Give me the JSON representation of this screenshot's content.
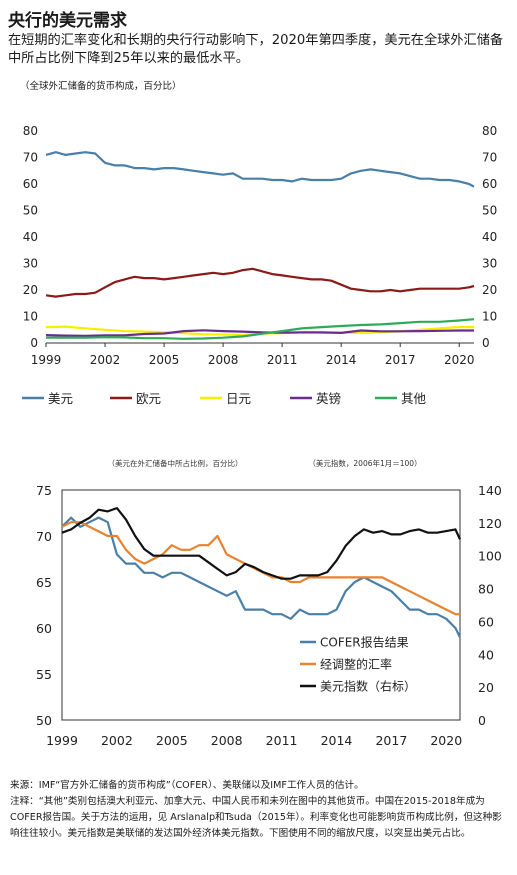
{
  "header": {
    "title": "央行的美元需求",
    "subtitle": "在短期的汇率变化和长期的央行行动影响下，2020年第四季度，美元在全球外汇储备中所占比例下降到25年以来的最低水平。"
  },
  "footer": {
    "source": "来源：IMF“官方外汇储备的货币构成”（COFER）、美联储以及IMF工作人员的估计。",
    "note": "注释：“其他”类别包括澳大利亚元、加拿大元、中国人民币和未列在图中的其他货币。中国在2015-2018年成为COFER报告国。关于方法的运用，见 Arslanalp和Tsuda（2015年）。利率变化也可能影响货币构成比例，但这种影响往往较小。美元指数是美联储的发达国外经济体美元指数。下图使用不同的缩放尺度，以突显出美元占比。"
  },
  "chart_data": [
    {
      "type": "line",
      "unit_label": "（全球外汇储备的货币构成，百分比）",
      "ylim": [
        0,
        80
      ],
      "yticks": [
        "0",
        "10",
        "20",
        "30",
        "40",
        "50",
        "60",
        "70",
        "80"
      ],
      "xlim": [
        1999,
        2020.75
      ],
      "xticks": [
        "1999",
        "2002",
        "2005",
        "2008",
        "2011",
        "2014",
        "2017",
        "2020"
      ],
      "grid": false,
      "legend_position": "bottom",
      "series": [
        {
          "name": "美元",
          "color": "#4a7fa8",
          "x": [
            1999,
            1999.5,
            2000,
            2000.5,
            2001,
            2001.5,
            2002,
            2002.5,
            2003,
            2003.5,
            2004,
            2004.5,
            2005,
            2005.5,
            2006,
            2006.5,
            2007,
            2007.5,
            2008,
            2008.5,
            2009,
            2009.5,
            2010,
            2010.5,
            2011,
            2011.5,
            2012,
            2012.5,
            2013,
            2013.5,
            2014,
            2014.5,
            2015,
            2015.5,
            2016,
            2016.5,
            2017,
            2017.5,
            2018,
            2018.5,
            2019,
            2019.5,
            2020,
            2020.5,
            2020.75
          ],
          "values": [
            71,
            72,
            71,
            71.5,
            72,
            71.5,
            68,
            67,
            67,
            66,
            66,
            65.5,
            66,
            66,
            65.5,
            65,
            64.5,
            64,
            63.5,
            64,
            62,
            62,
            62,
            61.5,
            61.5,
            61,
            62,
            61.5,
            61.5,
            61.5,
            62,
            64,
            65,
            65.5,
            65,
            64.5,
            64,
            63,
            62,
            62,
            61.5,
            61.5,
            61,
            60,
            59
          ]
        },
        {
          "name": "欧元",
          "color": "#8b1a1a",
          "x": [
            1999,
            1999.5,
            2000,
            2000.5,
            2001,
            2001.5,
            2002,
            2002.5,
            2003,
            2003.5,
            2004,
            2004.5,
            2005,
            2005.5,
            2006,
            2006.5,
            2007,
            2007.5,
            2008,
            2008.5,
            2009,
            2009.5,
            2010,
            2010.5,
            2011,
            2011.5,
            2012,
            2012.5,
            2013,
            2013.5,
            2014,
            2014.5,
            2015,
            2015.5,
            2016,
            2016.5,
            2017,
            2017.5,
            2018,
            2018.5,
            2019,
            2019.5,
            2020,
            2020.5,
            2020.75
          ],
          "values": [
            18,
            17.5,
            18,
            18.5,
            18.5,
            19,
            21,
            23,
            24,
            25,
            24.5,
            24.5,
            24,
            24.5,
            25,
            25.5,
            26,
            26.5,
            26,
            26.5,
            27.5,
            28,
            27,
            26,
            25.5,
            25,
            24.5,
            24,
            24,
            23.5,
            22,
            20.5,
            20,
            19.5,
            19.5,
            20,
            19.5,
            20,
            20.5,
            20.5,
            20.5,
            20.5,
            20.5,
            21,
            21.5
          ]
        },
        {
          "name": "日元",
          "color": "#f5f000",
          "x": [
            1999,
            2000,
            2001,
            2002,
            2003,
            2004,
            2005,
            2006,
            2007,
            2008,
            2009,
            2010,
            2011,
            2012,
            2013,
            2014,
            2015,
            2016,
            2017,
            2018,
            2019,
            2020,
            2020.75
          ],
          "values": [
            6,
            6.2,
            5.5,
            5,
            4.5,
            4.3,
            4,
            3.7,
            3.3,
            3.2,
            3,
            3.6,
            3.7,
            4,
            3.9,
            3.9,
            3.8,
            4,
            4.5,
            5,
            5.5,
            6,
            6
          ]
        },
        {
          "name": "英镑",
          "color": "#6a2d8f",
          "x": [
            1999,
            2000,
            2001,
            2002,
            2003,
            2004,
            2005,
            2006,
            2007,
            2008,
            2009,
            2010,
            2011,
            2012,
            2013,
            2014,
            2015,
            2016,
            2017,
            2018,
            2019,
            2020,
            2020.75
          ],
          "values": [
            3,
            2.8,
            2.7,
            2.9,
            2.9,
            3.4,
            3.6,
            4.5,
            4.8,
            4.5,
            4.3,
            4,
            3.9,
            4,
            4,
            3.8,
            4.7,
            4.4,
            4.4,
            4.5,
            4.6,
            4.7,
            4.7
          ]
        },
        {
          "name": "其他",
          "color": "#2eaa5a",
          "x": [
            1999,
            2000,
            2001,
            2002,
            2003,
            2004,
            2005,
            2006,
            2007,
            2008,
            2009,
            2010,
            2011,
            2012,
            2013,
            2014,
            2015,
            2016,
            2017,
            2018,
            2019,
            2020,
            2020.75
          ],
          "values": [
            2,
            2,
            2,
            2.2,
            2.1,
            1.8,
            1.8,
            1.6,
            1.7,
            2,
            2.5,
            3.5,
            4.5,
            5.5,
            6,
            6.4,
            6.8,
            7,
            7.5,
            8,
            8,
            8.5,
            9
          ]
        }
      ]
    },
    {
      "type": "line",
      "left_axis_label": "（美元在外汇储备中所占比例，百分比）",
      "right_axis_label": "（美元指数，2006年1月＝100）",
      "ylim_left": [
        50,
        75
      ],
      "yticks_left": [
        "50",
        "55",
        "60",
        "65",
        "70",
        "75"
      ],
      "ylim_right": [
        0,
        140
      ],
      "yticks_right": [
        "0",
        "20",
        "40",
        "60",
        "80",
        "100",
        "120",
        "140"
      ],
      "xlim": [
        1999,
        2020.75
      ],
      "xticks": [
        "1999",
        "2002",
        "2005",
        "2008",
        "2011",
        "2014",
        "2017",
        "2020"
      ],
      "grid": false,
      "legend_position": "bottom-right",
      "series": [
        {
          "name": "COFER报告结果",
          "color": "#4a7fa8",
          "axis": "left",
          "x": [
            1999,
            1999.5,
            2000,
            2000.5,
            2001,
            2001.5,
            2002,
            2002.5,
            2003,
            2003.5,
            2004,
            2004.5,
            2005,
            2005.5,
            2006,
            2006.5,
            2007,
            2007.5,
            2008,
            2008.5,
            2009,
            2009.5,
            2010,
            2010.5,
            2011,
            2011.5,
            2012,
            2012.5,
            2013,
            2013.5,
            2014,
            2014.5,
            2015,
            2015.5,
            2016,
            2016.5,
            2017,
            2017.5,
            2018,
            2018.5,
            2019,
            2019.5,
            2020,
            2020.5,
            2020.75
          ],
          "values": [
            71,
            72,
            71,
            71.5,
            72,
            71.5,
            68,
            67,
            67,
            66,
            66,
            65.5,
            66,
            66,
            65.5,
            65,
            64.5,
            64,
            63.5,
            64,
            62,
            62,
            62,
            61.5,
            61.5,
            61,
            62,
            61.5,
            61.5,
            61.5,
            62,
            64,
            65,
            65.5,
            65,
            64.5,
            64,
            63,
            62,
            62,
            61.5,
            61.5,
            61,
            60,
            59
          ]
        },
        {
          "name": "经调整的汇率",
          "color": "#e8822e",
          "axis": "left",
          "x": [
            1999,
            1999.5,
            2000,
            2000.5,
            2001,
            2001.5,
            2002,
            2002.5,
            2003,
            2003.5,
            2004,
            2004.5,
            2005,
            2005.5,
            2006,
            2006.5,
            2007,
            2007.5,
            2008,
            2008.5,
            2009,
            2009.5,
            2010,
            2010.5,
            2011,
            2011.5,
            2012,
            2012.5,
            2013,
            2013.5,
            2014,
            2014.5,
            2015,
            2015.5,
            2016,
            2016.5,
            2017,
            2017.5,
            2018,
            2018.5,
            2019,
            2019.5,
            2020,
            2020.5,
            2020.75
          ],
          "values": [
            71,
            71.5,
            71.5,
            71,
            70.5,
            70,
            70,
            68.5,
            67.5,
            67,
            67.5,
            68,
            69,
            68.5,
            68.5,
            69,
            69,
            70,
            68,
            67.5,
            67,
            66.5,
            66,
            65.5,
            65.5,
            65,
            65,
            65.5,
            65.5,
            65.5,
            65.5,
            65.5,
            65.5,
            65.5,
            65.5,
            65.5,
            65,
            64.5,
            64,
            63.5,
            63,
            62.5,
            62,
            61.5,
            61.5
          ]
        },
        {
          "name": "美元指数（右标）",
          "color": "#111111",
          "axis": "right",
          "x": [
            1999,
            1999.5,
            2000,
            2000.5,
            2001,
            2001.5,
            2002,
            2002.5,
            2003,
            2003.5,
            2004,
            2004.5,
            2005,
            2005.5,
            2006,
            2006.5,
            2007,
            2007.5,
            2008,
            2008.5,
            2009,
            2009.5,
            2010,
            2010.5,
            2011,
            2011.5,
            2012,
            2012.5,
            2013,
            2013.5,
            2014,
            2014.5,
            2015,
            2015.5,
            2016,
            2016.5,
            2017,
            2017.5,
            2018,
            2018.5,
            2019,
            2019.5,
            2020,
            2020.5,
            2020.75
          ],
          "values": [
            114,
            116,
            120,
            123,
            128,
            127,
            129,
            122,
            112,
            104,
            100,
            100,
            100,
            100,
            100,
            100,
            96,
            92,
            88,
            90,
            95,
            93,
            90,
            88,
            86,
            86,
            88,
            88,
            88,
            90,
            97,
            106,
            112,
            116,
            114,
            115,
            113,
            113,
            115,
            116,
            114,
            114,
            115,
            116,
            110
          ]
        }
      ]
    }
  ]
}
